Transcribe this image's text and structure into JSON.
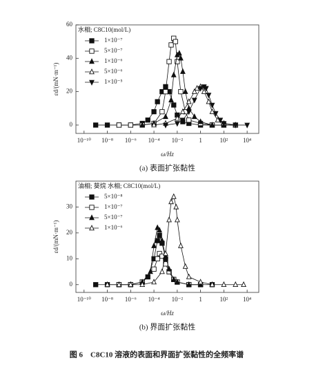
{
  "figure_caption": "图 6　C8C10 溶液的表面和界面扩张黏性的全频率谱",
  "chart_data": [
    {
      "type": "line",
      "caption": "(a) 表面扩张黏性",
      "x_label": "ω/Hz",
      "y_label": "εd/(mN·m⁻¹)",
      "legend_title": "水相; C8C10(mol/L)",
      "legend": "upper left",
      "x_log": true,
      "xlim": [
        2e-11,
        100000.0
      ],
      "ylim": [
        -5,
        60
      ],
      "xticks": [
        {
          "value": 1e-10,
          "label": "10⁻¹⁰"
        },
        {
          "value": 1e-08,
          "label": "10⁻⁸"
        },
        {
          "value": 1e-06,
          "label": "10⁻⁶"
        },
        {
          "value": 0.0001,
          "label": "10⁻⁴"
        },
        {
          "value": 0.01,
          "label": "10⁻²"
        },
        1,
        {
          "value": 100,
          "label": "10²"
        },
        {
          "value": 10000,
          "label": "10⁴"
        }
      ],
      "yticks": [
        0,
        20,
        40,
        60
      ],
      "series": [
        {
          "name": "1×10⁻⁷",
          "color": "#111",
          "marker": "square",
          "filled": true,
          "x": [
            1e-09,
            1e-08,
            1e-07,
            1e-06,
            1e-05,
            3e-05,
            0.0001,
            0.0002,
            0.0005,
            0.001,
            0.002,
            0.005,
            0.01,
            0.03,
            0.1,
            1,
            10,
            100,
            1000
          ],
          "values": [
            0,
            0,
            0,
            0,
            1,
            3,
            8,
            14,
            20,
            23,
            20,
            12,
            6,
            2,
            1,
            0,
            0,
            0,
            0
          ]
        },
        {
          "name": "5×10⁻⁷",
          "color": "#111",
          "marker": "square",
          "filled": false,
          "x": [
            1e-07,
            1e-06,
            1e-05,
            0.0001,
            0.0005,
            0.001,
            0.002,
            0.003,
            0.005,
            0.007,
            0.01,
            0.02,
            0.05,
            0.1,
            1,
            10,
            100
          ],
          "values": [
            0,
            0,
            0,
            1,
            8,
            20,
            38,
            48,
            52,
            50,
            38,
            20,
            8,
            3,
            1,
            0,
            0
          ]
        },
        {
          "name": "1×10⁻⁶",
          "color": "#111",
          "marker": "triangle",
          "filled": true,
          "x": [
            1e-05,
            0.0001,
            0.001,
            0.003,
            0.005,
            0.01,
            0.015,
            0.02,
            0.03,
            0.05,
            0.1,
            0.3,
            1,
            10,
            100,
            1000
          ],
          "values": [
            0,
            1,
            5,
            15,
            30,
            42,
            43,
            40,
            32,
            20,
            10,
            5,
            2,
            0,
            0,
            0
          ]
        },
        {
          "name": "5×10⁻⁶",
          "color": "#111",
          "marker": "triangle",
          "filled": false,
          "x": [
            0.0001,
            0.001,
            0.01,
            0.03,
            0.1,
            0.3,
            0.5,
            1,
            2,
            5,
            10,
            30,
            100,
            1000
          ],
          "values": [
            0,
            1,
            4,
            8,
            14,
            20,
            22,
            23,
            20,
            14,
            8,
            3,
            1,
            0
          ]
        },
        {
          "name": "1×10⁻⁵",
          "color": "#111",
          "marker": "triangle-down",
          "filled": true,
          "x": [
            0.001,
            0.01,
            0.03,
            0.1,
            0.3,
            1,
            2,
            3,
            5,
            10,
            20,
            50,
            100,
            1000,
            10000
          ],
          "values": [
            0,
            1,
            3,
            8,
            15,
            22,
            23,
            22,
            18,
            12,
            7,
            3,
            1,
            0,
            0
          ]
        }
      ]
    },
    {
      "type": "line",
      "caption": "(b) 界面扩张黏性",
      "x_label": "ω/Hz",
      "y_label": "εd/(mN·m⁻¹)",
      "legend_title": "油相; 葵烷 水相; C8C10(mol/L)",
      "legend": "upper left",
      "x_log": true,
      "xlim": [
        2e-11,
        100000.0
      ],
      "ylim": [
        -3,
        40
      ],
      "xticks": [
        {
          "value": 1e-10,
          "label": "10⁻¹⁰"
        },
        {
          "value": 1e-08,
          "label": "10⁻⁸"
        },
        {
          "value": 1e-06,
          "label": "10⁻⁶"
        },
        {
          "value": 0.0001,
          "label": "10⁻⁴"
        },
        {
          "value": 0.01,
          "label": "10⁻²"
        },
        1,
        {
          "value": 100,
          "label": "10²"
        },
        {
          "value": 10000,
          "label": "10⁴"
        }
      ],
      "yticks": [
        0,
        10,
        20,
        30
      ],
      "series": [
        {
          "name": "5×10⁻⁸",
          "color": "#111",
          "marker": "square",
          "filled": true,
          "x": [
            1e-09,
            1e-08,
            1e-07,
            1e-06,
            1e-05,
            3e-05,
            0.0001,
            0.0002,
            0.0003,
            0.0005,
            0.001,
            0.002,
            0.005,
            0.01,
            0.1,
            1,
            10
          ],
          "values": [
            0,
            0,
            0,
            0,
            1,
            3,
            10,
            17,
            19,
            16,
            10,
            5,
            2,
            1,
            0,
            0,
            0
          ]
        },
        {
          "name": "1×10⁻⁷",
          "color": "#111",
          "marker": "square",
          "filled": false,
          "x": [
            1e-07,
            1e-06,
            1e-05,
            0.0001,
            0.0002,
            0.0003,
            0.0005,
            0.001,
            0.002,
            0.005,
            0.01,
            0.1,
            1
          ],
          "values": [
            0,
            0,
            1,
            6,
            10,
            12,
            11,
            8,
            5,
            2,
            1,
            0,
            0
          ]
        },
        {
          "name": "5×10⁻⁷",
          "color": "#111",
          "marker": "triangle",
          "filled": true,
          "x": [
            1e-06,
            1e-05,
            5e-05,
            0.0001,
            0.0002,
            0.0003,
            0.0005,
            0.001,
            0.002,
            0.005,
            0.01,
            0.1,
            1
          ],
          "values": [
            0,
            1,
            5,
            15,
            22,
            21,
            17,
            11,
            6,
            2,
            1,
            0,
            0
          ]
        },
        {
          "name": "1×10⁻⁶",
          "color": "#111",
          "marker": "triangle",
          "filled": false,
          "x": [
            1e-08,
            1e-07,
            1e-06,
            1e-05,
            0.0001,
            0.0005,
            0.001,
            0.002,
            0.003,
            0.005,
            0.008,
            0.01,
            0.02,
            0.05,
            0.1,
            1,
            10,
            100,
            1000,
            5000
          ],
          "values": [
            0,
            0,
            0,
            0,
            1,
            5,
            12,
            25,
            32,
            34,
            30,
            25,
            15,
            7,
            3,
            1,
            0,
            0,
            0,
            0
          ]
        }
      ]
    }
  ]
}
